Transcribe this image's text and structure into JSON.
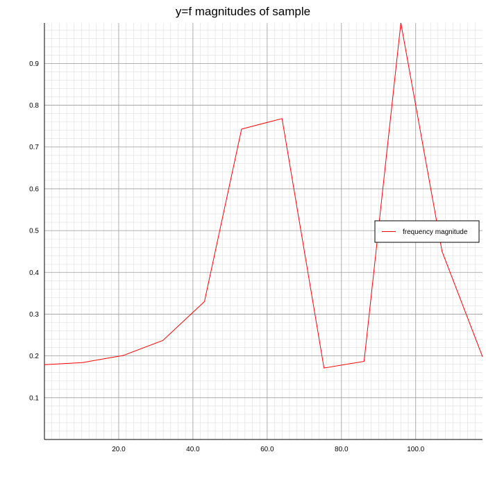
{
  "chart_data": {
    "type": "line",
    "title": "y=f magnitudes of sample",
    "xlabel": "",
    "ylabel": "",
    "xlim": [
      0,
      118
    ],
    "ylim": [
      0,
      0.997
    ],
    "grid": true,
    "legend_placement": "right",
    "x_ticks": [
      20.0,
      40.0,
      60.0,
      80.0,
      100.0
    ],
    "x_tick_labels": [
      "20.0",
      "40.0",
      "60.0",
      "80.0",
      "100.0"
    ],
    "y_ticks": [
      0.1,
      0.2,
      0.3,
      0.4,
      0.5,
      0.6,
      0.7,
      0.8,
      0.9
    ],
    "y_tick_labels": [
      "0.1",
      "0.2",
      "0.3",
      "0.4",
      "0.5",
      "0.6",
      "0.7",
      "0.8",
      "0.9"
    ],
    "series": [
      {
        "name": "frequency magnitude",
        "color": "#ff0000",
        "x": [
          0,
          10.2,
          21.2,
          31.9,
          43.1,
          53.1,
          64.0,
          75.3,
          86.1,
          96.0,
          107.1,
          118
        ],
        "y": [
          0.179,
          0.184,
          0.201,
          0.237,
          0.33,
          0.743,
          0.768,
          0.171,
          0.187,
          0.997,
          0.45,
          0.198
        ]
      }
    ]
  }
}
